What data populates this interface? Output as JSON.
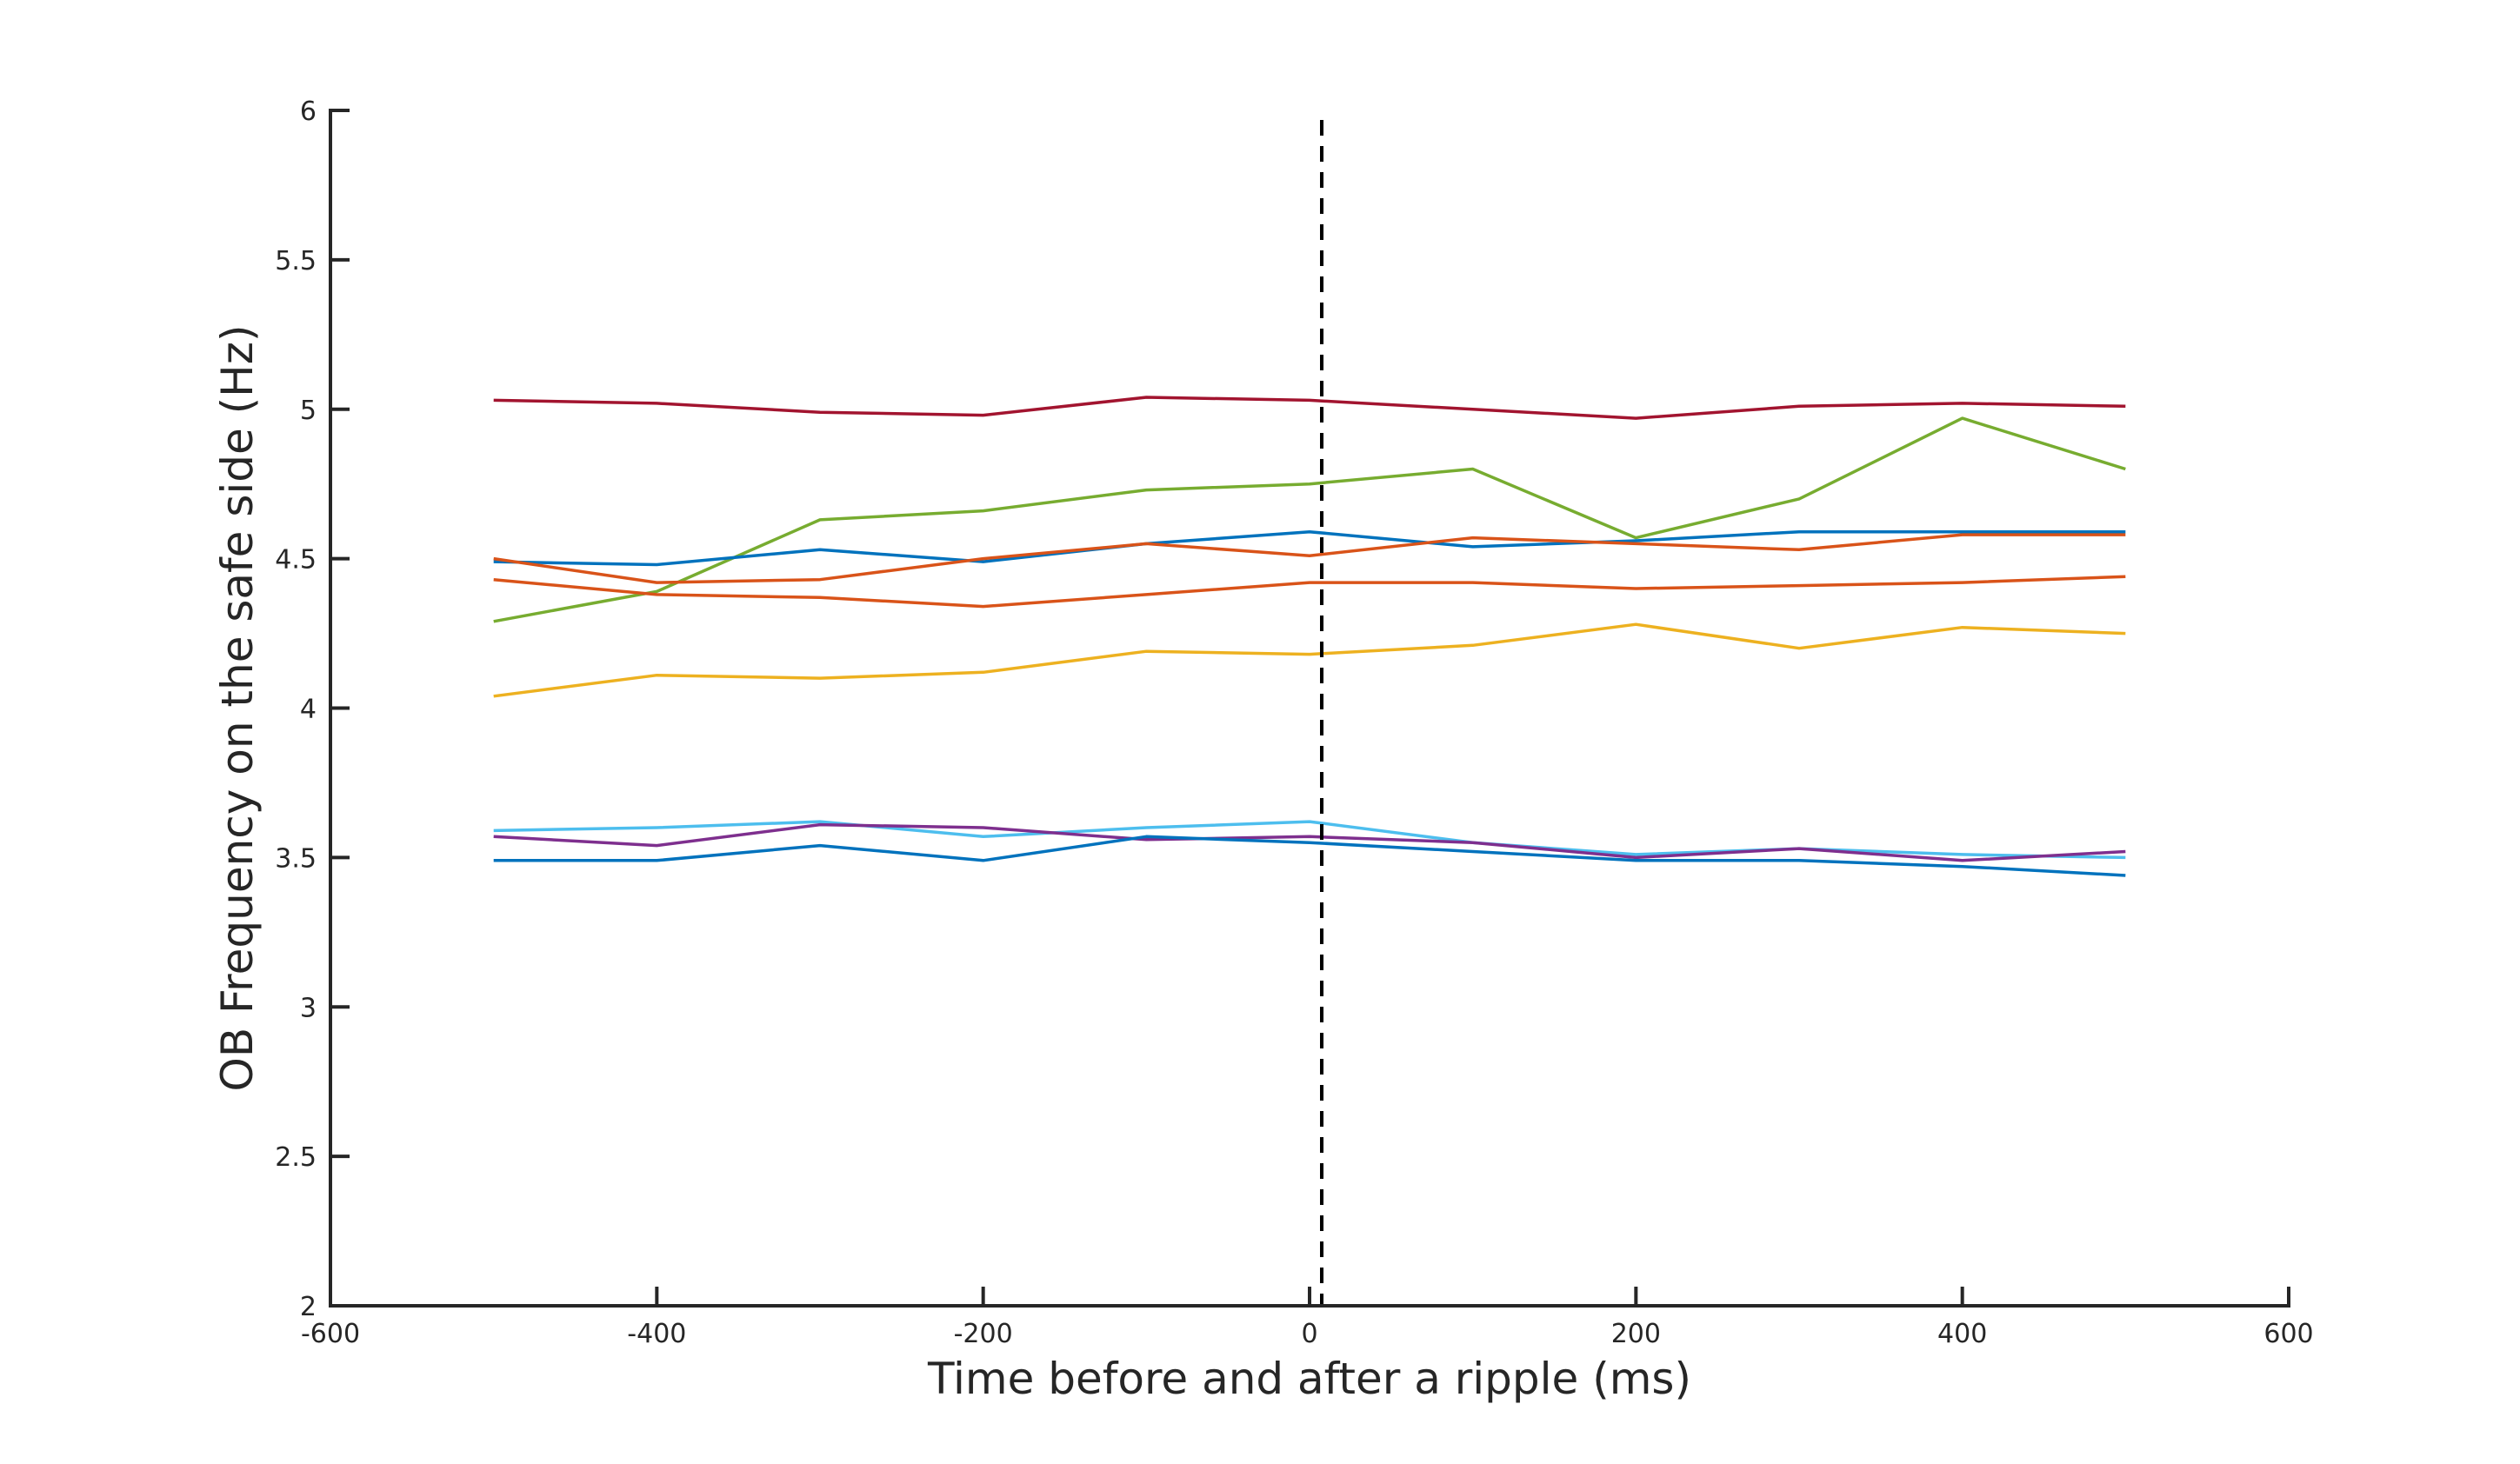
{
  "chart_data": {
    "type": "line",
    "title": "",
    "xlabel": "Time before and after a ripple (ms)",
    "ylabel": "OB Frequency on the safe side (Hz)",
    "xlim": [
      -600,
      600
    ],
    "ylim": [
      2,
      6
    ],
    "xticks": [
      -600,
      -400,
      -200,
      0,
      200,
      400,
      600
    ],
    "xtick_labels": [
      "-600",
      "-400",
      "-200",
      "0",
      "200",
      "400",
      "600"
    ],
    "yticks": [
      2,
      2.5,
      3,
      3.5,
      4,
      4.5,
      5,
      5.5,
      6
    ],
    "ytick_labels": [
      "2",
      "2.5",
      "3",
      "3.5",
      "4",
      "4.5",
      "5",
      "5.5",
      "6"
    ],
    "grid": false,
    "legend": "none",
    "vertical_marker": {
      "x": 0,
      "style": "dashed",
      "color": "#000000"
    },
    "x": [
      -500,
      -400,
      -300,
      -200,
      -100,
      0,
      100,
      200,
      300,
      400,
      500
    ],
    "series": [
      {
        "color": "#A2142F",
        "values": [
          5.03,
          5.02,
          4.99,
          4.98,
          5.04,
          5.03,
          5.0,
          4.97,
          5.01,
          5.02,
          5.01
        ]
      },
      {
        "color": "#77AC30",
        "values": [
          4.29,
          4.39,
          4.63,
          4.66,
          4.73,
          4.75,
          4.8,
          4.57,
          4.7,
          4.97,
          4.8
        ]
      },
      {
        "color": "#0072BD",
        "values": [
          4.49,
          4.48,
          4.53,
          4.49,
          4.55,
          4.59,
          4.54,
          4.56,
          4.59,
          4.59,
          4.59
        ]
      },
      {
        "color": "#D95319",
        "values": [
          4.5,
          4.42,
          4.43,
          4.5,
          4.55,
          4.51,
          4.57,
          4.55,
          4.53,
          4.58,
          4.58
        ]
      },
      {
        "color": "#D95319",
        "values": [
          4.43,
          4.38,
          4.37,
          4.34,
          4.38,
          4.42,
          4.42,
          4.4,
          4.41,
          4.42,
          4.44
        ]
      },
      {
        "color": "#EDB120",
        "values": [
          4.04,
          4.11,
          4.1,
          4.12,
          4.19,
          4.18,
          4.21,
          4.28,
          4.2,
          4.27,
          4.25
        ]
      },
      {
        "color": "#4DBEEE",
        "values": [
          3.59,
          3.6,
          3.62,
          3.57,
          3.6,
          3.62,
          3.55,
          3.51,
          3.53,
          3.51,
          3.5
        ]
      },
      {
        "color": "#7E2F8E",
        "values": [
          3.57,
          3.54,
          3.61,
          3.6,
          3.56,
          3.57,
          3.55,
          3.5,
          3.53,
          3.49,
          3.52
        ]
      },
      {
        "color": "#0072BD",
        "values": [
          3.49,
          3.49,
          3.54,
          3.49,
          3.57,
          3.55,
          3.52,
          3.49,
          3.49,
          3.47,
          3.44
        ]
      }
    ]
  }
}
